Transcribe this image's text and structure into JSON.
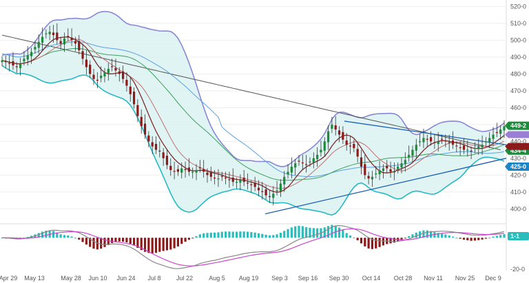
{
  "chart_data": {
    "type": "candlestick",
    "x_ticks": [
      "Apr 29",
      "May 13",
      "May 28",
      "Jun 10",
      "Jun 24",
      "Jul 8",
      "Jul 22",
      "Aug 5",
      "Aug 19",
      "Sep 3",
      "Sep 16",
      "Sep 30",
      "Oct 14",
      "Oct 28",
      "Nov 11",
      "Nov 25",
      "Dec 9"
    ],
    "price_axis": {
      "range": [
        394,
        523
      ],
      "ticks": [
        "400-0",
        "410-0",
        "420-0",
        "430-0",
        "440-0",
        "450-0",
        "460-0",
        "470-0",
        "480-0",
        "490-0",
        "500-0",
        "510-0",
        "520-0"
      ],
      "tick_values": [
        400,
        410,
        420,
        430,
        440,
        450,
        460,
        470,
        480,
        490,
        500,
        510,
        520
      ]
    },
    "price_tags": [
      {
        "label": "449-2",
        "value": 449.25,
        "color": "#1e8a3c"
      },
      {
        "label": "434-4",
        "value": 434.5,
        "color": "#1e8a3c"
      },
      {
        "label": "425-0",
        "value": 425.0,
        "color": "#1a86c8"
      }
    ],
    "close": [
      488,
      487,
      486,
      485,
      484,
      486,
      489,
      491,
      493,
      496,
      499,
      502,
      504,
      505,
      503,
      500,
      498,
      501,
      502,
      500,
      498,
      494,
      489,
      484,
      480,
      477,
      476,
      479,
      481,
      483,
      484,
      482,
      480,
      477,
      473,
      468,
      462,
      455,
      449,
      444,
      440,
      437,
      435,
      434,
      430,
      426,
      423,
      422,
      422,
      424,
      423,
      422,
      422,
      423,
      424,
      422,
      420,
      419,
      418,
      418,
      419,
      418,
      417,
      416,
      416,
      417,
      416,
      415,
      414,
      413,
      411,
      410,
      408,
      407,
      409,
      411,
      415,
      419,
      422,
      425,
      427,
      428,
      427,
      426,
      428,
      430,
      432,
      435,
      440,
      446,
      450,
      447,
      444,
      441,
      438,
      437,
      436,
      431,
      425,
      420,
      418,
      419,
      421,
      423,
      424,
      424,
      422,
      422,
      425,
      427,
      429,
      432,
      435,
      438,
      440,
      442,
      441,
      440,
      439,
      440,
      441,
      440,
      439,
      438,
      437,
      436,
      435,
      435,
      434,
      436,
      437,
      438,
      440,
      442,
      444,
      445,
      447,
      449
    ],
    "ma_slow": [
      503,
      502.5,
      502,
      501.5,
      501,
      500.5,
      500,
      499.5,
      499,
      498.5,
      498,
      497.5,
      497,
      496.5,
      496,
      495.5,
      495,
      494.5,
      494,
      493.5,
      493,
      492.5,
      492,
      491.5,
      491,
      490.5,
      490,
      489.5,
      489,
      488.5,
      488,
      487.5,
      487,
      486.5,
      486,
      485.5,
      485,
      484.5,
      484,
      483.5,
      483,
      482.5,
      482,
      481.5,
      481,
      480.5,
      480,
      479.5,
      479,
      478.5,
      478,
      477.5,
      477,
      476.5,
      476,
      475.5,
      475,
      474.5,
      474,
      473.5,
      473,
      472.5,
      472,
      471.5,
      471,
      470.5,
      470,
      469.5,
      469,
      468.5,
      468,
      467.5,
      467,
      466.5,
      466,
      465.5,
      465,
      464.5,
      464,
      463.5,
      463,
      462.5,
      462,
      461.5,
      461,
      460.5,
      460,
      459.5,
      459,
      458.5,
      458,
      457.5,
      457,
      456.5,
      456,
      455.5,
      455,
      454.5,
      454,
      453.5,
      453,
      452.5,
      452,
      451.5,
      451,
      450.5,
      450,
      449.5,
      449,
      448.5,
      448,
      447.5,
      447,
      446.5,
      446,
      445.5,
      445,
      444.5,
      444,
      443.5,
      443,
      442.5,
      442,
      441.5,
      441,
      440.5,
      440,
      439.5,
      439,
      438.5,
      438,
      437.5,
      437,
      436.5,
      436,
      435.5,
      435
    ],
    "ma_mid": [
      492,
      492,
      492,
      493,
      494,
      495,
      496,
      497,
      498,
      499,
      500,
      500,
      500,
      499,
      498,
      496,
      493,
      490,
      486,
      482,
      478,
      474,
      470,
      466,
      462,
      458,
      454,
      450,
      446,
      442,
      438,
      434,
      431,
      428,
      425,
      422,
      420,
      418,
      416,
      415,
      414,
      414,
      414,
      415,
      417,
      419,
      421,
      423,
      425,
      427,
      428,
      429,
      430,
      431,
      431,
      432,
      432,
      432,
      432,
      433,
      433,
      433,
      434,
      434,
      434,
      434,
      435,
      435,
      435,
      436,
      436,
      436,
      436,
      436,
      436,
      436,
      436,
      436,
      436,
      436,
      436,
      436,
      436,
      436,
      436,
      436,
      436,
      436,
      436,
      436,
      436,
      436,
      436,
      436,
      436,
      436,
      436,
      436,
      436,
      436,
      436,
      436,
      436,
      436,
      436,
      436,
      436,
      436,
      436,
      436,
      436,
      436,
      436,
      436,
      436,
      436,
      436,
      436,
      436,
      436,
      436,
      436,
      436,
      436,
      436,
      436,
      436,
      436,
      436,
      436,
      436,
      436,
      436,
      436,
      436,
      436,
      436,
      436,
      436,
      436,
      436
    ],
    "macd_axis": {
      "ticks": [
        "1-1",
        "-20-0"
      ],
      "tick_values": [
        1,
        -20
      ]
    }
  }
}
